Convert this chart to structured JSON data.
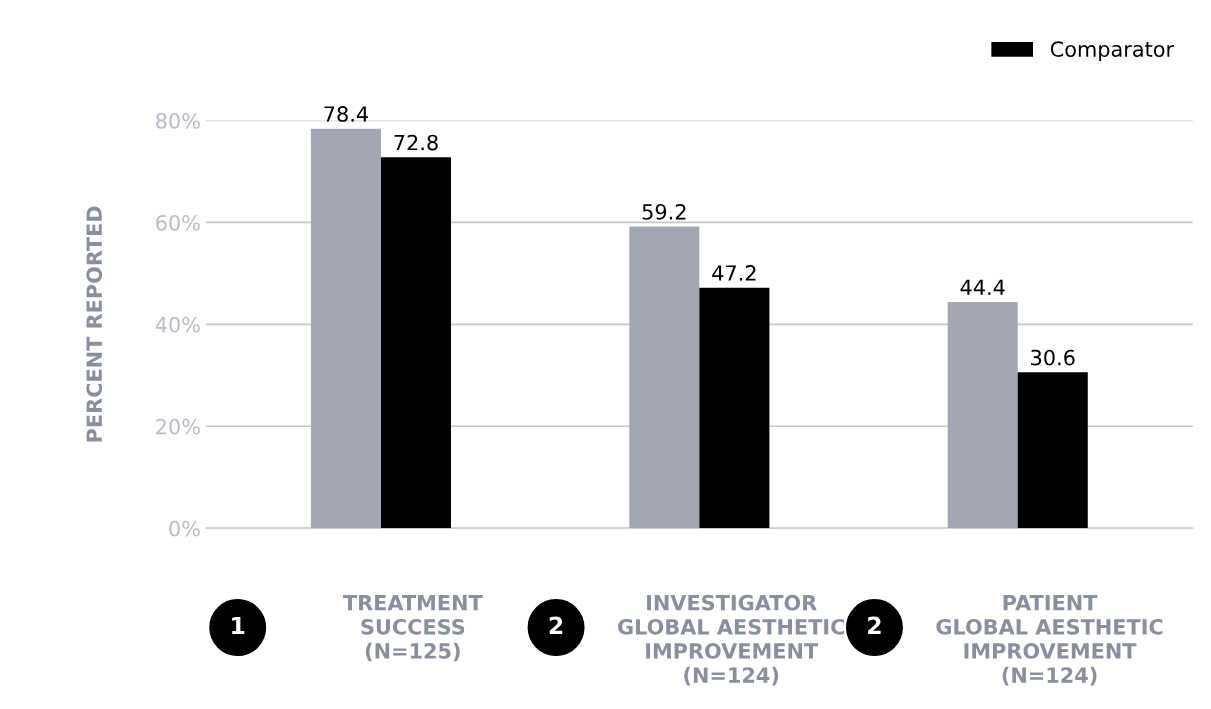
{
  "chart_data": {
    "type": "bar",
    "ylabel": "PERCENT REPORTED",
    "categories": [
      "TREATMENT\nSUCCESS\n(N=125)",
      "INVESTIGATOR\nGLOBAL AESTHETIC\nIMPROVEMENT\n(N=124)",
      "PATIENT\nGLOBAL AESTHETIC\nIMPROVEMENT\n(N=124)"
    ],
    "series": [
      {
        "color": "#a3a7b4",
        "values": [
          78.4,
          59.2,
          44.4
        ]
      },
      {
        "name": "Comparator",
        "color": "#000000",
        "values": [
          72.8,
          47.2,
          30.6
        ]
      }
    ],
    "ylim": [
      0,
      80
    ],
    "yticks": [
      {
        "value": 0,
        "label": "0%"
      },
      {
        "value": 20,
        "label": "20%"
      },
      {
        "value": 40,
        "label": "40%"
      },
      {
        "value": 60,
        "label": "60%"
      },
      {
        "value": 80,
        "label": "80%"
      }
    ],
    "grid": "y",
    "legend": "top right",
    "data_labels": true,
    "annotations": [
      "1",
      "2",
      "2"
    ]
  }
}
